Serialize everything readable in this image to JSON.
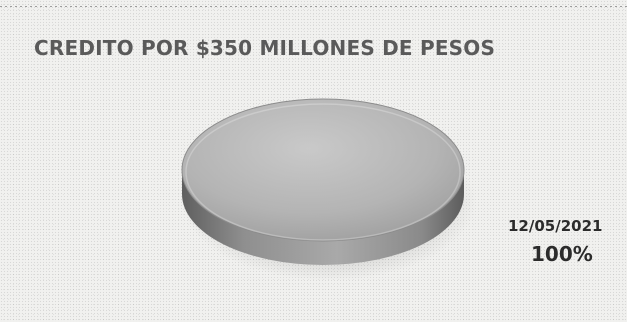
{
  "chart_data": {
    "type": "pie",
    "title": "CREDITO POR $350 MILLONES DE PESOS",
    "categories": [
      "12/05/2021"
    ],
    "values": [
      100
    ],
    "data_labels": [
      {
        "category": "12/05/2021",
        "value_text": "100%"
      }
    ],
    "legend": "none",
    "colors": {
      "slice_top": "#b4b4b4",
      "slice_side": "#7c7c7c",
      "text": "#2b2b2b",
      "title": "#5a5a5a"
    }
  }
}
